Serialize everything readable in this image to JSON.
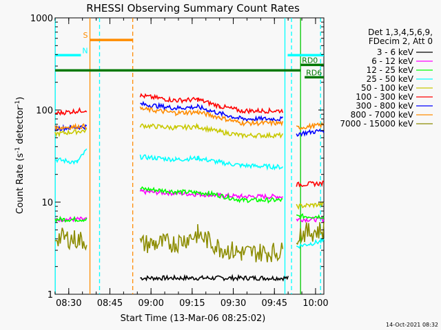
{
  "chart_data": {
    "type": "line",
    "title": "RHESSI Observing Summary Count Rates",
    "xlabel": "Start Time (13-Mar-06 08:25:02)",
    "ylabel_main": "Count Rate (s",
    "ylabel_sup1": "-1",
    "ylabel_mid": " detector",
    "ylabel_sup2": "-1",
    "ylabel_end": ")",
    "y_scale": "log",
    "ylim": [
      1,
      1000
    ],
    "y_ticks": [
      {
        "value": 1,
        "label": "1"
      },
      {
        "value": 10,
        "label": "10"
      },
      {
        "value": 100,
        "label": "100"
      },
      {
        "value": 1000,
        "label": "1000"
      }
    ],
    "x_range_minutes": [
      0,
      98
    ],
    "x_ticks": [
      {
        "minute": 4.97,
        "label": "08:30"
      },
      {
        "minute": 19.97,
        "label": "08:45"
      },
      {
        "minute": 34.97,
        "label": "09:00"
      },
      {
        "minute": 49.97,
        "label": "09:15"
      },
      {
        "minute": 64.97,
        "label": "09:30"
      },
      {
        "minute": 79.97,
        "label": "09:45"
      },
      {
        "minute": 94.97,
        "label": "10:00"
      }
    ],
    "legend_header": [
      "Det 1,3,4,5,6,9,",
      "FDecim 2, Att 0"
    ],
    "legend_position": "right",
    "series": [
      {
        "name": "3 - 6 keV",
        "color": "#000000",
        "segments": [
          [
            [
              31,
              1.5
            ],
            [
              85,
              1.5
            ]
          ]
        ]
      },
      {
        "name": "6 - 12 keV",
        "color": "#ff00ff",
        "segments": [
          [
            [
              0,
              6.5
            ],
            [
              11.5,
              6.5
            ]
          ],
          [
            [
              31,
              13
            ],
            [
              44,
              12.5
            ],
            [
              56,
              12
            ],
            [
              68,
              11.5
            ],
            [
              83,
              11.5
            ]
          ],
          [
            [
              88,
              6.5
            ],
            [
              98,
              6.5
            ]
          ]
        ]
      },
      {
        "name": "12 - 25 keV",
        "color": "#00ff00",
        "segments": [
          [
            [
              0,
              6.5
            ],
            [
              11.5,
              6.5
            ]
          ],
          [
            [
              31,
              14
            ],
            [
              44,
              13
            ],
            [
              56,
              12.5
            ],
            [
              68,
              10.5
            ],
            [
              83,
              10.5
            ]
          ],
          [
            [
              88,
              7
            ],
            [
              98,
              7
            ]
          ]
        ]
      },
      {
        "name": "25 - 50 keV",
        "color": "#00ffff",
        "segments": [
          [
            [
              0,
              29
            ],
            [
              8,
              27
            ],
            [
              11.5,
              37
            ]
          ],
          [
            [
              31,
              31
            ],
            [
              44,
              29
            ],
            [
              52,
              30
            ],
            [
              60,
              27
            ],
            [
              68,
              25
            ],
            [
              83,
              24
            ]
          ],
          [
            [
              88,
              3.3
            ],
            [
              98,
              3.8
            ]
          ]
        ]
      },
      {
        "name": "50 - 100 keV",
        "color": "#c8c800",
        "segments": [
          [
            [
              0,
              55
            ],
            [
              11.5,
              60
            ]
          ],
          [
            [
              31,
              68
            ],
            [
              44,
              64
            ],
            [
              52,
              66
            ],
            [
              60,
              58
            ],
            [
              68,
              53
            ],
            [
              83,
              53
            ]
          ],
          [
            [
              88,
              9
            ],
            [
              98,
              9.5
            ]
          ]
        ]
      },
      {
        "name": "100 - 300 keV",
        "color": "#ff0000",
        "segments": [
          [
            [
              0,
              92
            ],
            [
              11.5,
              100
            ]
          ],
          [
            [
              31,
              143
            ],
            [
              44,
              127
            ],
            [
              52,
              130
            ],
            [
              60,
              110
            ],
            [
              68,
              98
            ],
            [
              83,
              98
            ]
          ],
          [
            [
              88,
              15.5
            ],
            [
              98,
              16
            ]
          ]
        ]
      },
      {
        "name": "300 - 800 keV",
        "color": "#0000ff",
        "segments": [
          [
            [
              0,
              63
            ],
            [
              11.5,
              66
            ]
          ],
          [
            [
              31,
              116
            ],
            [
              44,
              105
            ],
            [
              52,
              108
            ],
            [
              60,
              92
            ],
            [
              68,
              80
            ],
            [
              83,
              80
            ]
          ],
          [
            [
              88,
              55
            ],
            [
              98,
              60
            ]
          ]
        ]
      },
      {
        "name": "800 - 7000 keV",
        "color": "#ff8c00",
        "segments": [
          [
            [
              0,
              64
            ],
            [
              11.5,
              67
            ]
          ],
          [
            [
              31,
              103
            ],
            [
              44,
              93
            ],
            [
              52,
              95
            ],
            [
              60,
              83
            ],
            [
              68,
              72
            ],
            [
              83,
              72
            ]
          ],
          [
            [
              88,
              64
            ],
            [
              98,
              69
            ]
          ]
        ]
      },
      {
        "name": "7000 - 15000 keV",
        "color": "#8c8c00",
        "segments": [
          [
            [
              0,
              4.2
            ],
            [
              11.5,
              3.8
            ]
          ],
          [
            [
              31,
              3.5
            ],
            [
              44,
              3.6
            ],
            [
              52,
              4.5
            ],
            [
              60,
              3.2
            ],
            [
              68,
              2.8
            ],
            [
              83,
              2.9
            ]
          ],
          [
            [
              88,
              4.5
            ],
            [
              98,
              5
            ]
          ]
        ]
      }
    ],
    "annotations": {
      "bars": [
        {
          "label": "S",
          "color": "#ff8c00",
          "x_start": 12.7,
          "x_end": 28.3,
          "level": 0.92
        },
        {
          "label": "N",
          "color": "#00ffff",
          "x_start": 0,
          "x_end": 9.4,
          "level": 0.865
        },
        {
          "label": "",
          "color": "#00ffff",
          "x_start": 84.8,
          "x_end": 98,
          "level": 0.865
        },
        {
          "label": "",
          "color": "#007800",
          "x_start": 0,
          "x_end": 89.5,
          "level": 0.81
        },
        {
          "label": "RD0",
          "color": "#007800",
          "x_start": 89.5,
          "x_end": 98,
          "level": 0.83
        },
        {
          "label": "RD6",
          "color": "#007800",
          "x_start": 91,
          "x_end": 98,
          "level": 0.785
        }
      ],
      "vlines": [
        {
          "minute": 12.7,
          "color": "#ff8c00",
          "dashed": false
        },
        {
          "minute": 16.2,
          "color": "#00ffff",
          "dashed": true
        },
        {
          "minute": 28.3,
          "color": "#ff8c00",
          "dashed": true
        },
        {
          "minute": 83.8,
          "color": "#00ffff",
          "dashed": false
        },
        {
          "minute": 86.2,
          "color": "#00ffff",
          "dashed": true
        },
        {
          "minute": 89.5,
          "color": "#00c800",
          "dashed": false
        },
        {
          "minute": 96.8,
          "color": "#00ffff",
          "dashed": true
        },
        {
          "minute": 0.05,
          "color": "#00ffff",
          "dashed": false
        }
      ]
    }
  },
  "footer_timestamp": "14-Oct-2021 08:32"
}
